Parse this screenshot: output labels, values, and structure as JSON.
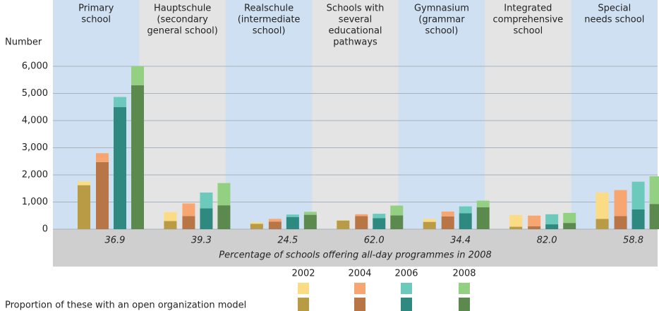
{
  "chart_data": {
    "type": "stacked-bar",
    "y_label": "Number",
    "categories": [
      [
        "Primary",
        "school"
      ],
      [
        "Hauptschule",
        "(secondary",
        "general school)"
      ],
      [
        "Realschule",
        "(intermediate",
        "school)"
      ],
      [
        "Schools with",
        "several",
        "educational",
        "pathways"
      ],
      [
        "Gymnasium",
        "(grammar",
        "school)"
      ],
      [
        "Integrated",
        "comprehensive",
        "school"
      ],
      [
        "Special",
        "needs school"
      ]
    ],
    "ylim": [
      0,
      6000
    ],
    "yticks": [
      0,
      {
        "value": 1000,
        "label": "1,000"
      },
      {
        "value": 2000,
        "label": "2,000"
      },
      {
        "value": 3000,
        "label": "3,000"
      },
      {
        "value": 4000,
        "label": "4,000"
      },
      {
        "value": 5000,
        "label": "5,000"
      },
      {
        "value": 6000,
        "label": "6,000"
      }
    ],
    "grid": true,
    "series": [
      {
        "name": "2002",
        "color": "#fbdc84",
        "open_color": "#b99b45",
        "open_values": [
          1620,
          300,
          200,
          320,
          270,
          90,
          380
        ],
        "other_values": [
          140,
          330,
          50,
          10,
          110,
          430,
          970
        ]
      },
      {
        "name": "2004",
        "color": "#f7a672",
        "open_color": "#b87545",
        "open_values": [
          2470,
          480,
          280,
          480,
          470,
          110,
          480
        ],
        "other_values": [
          330,
          470,
          100,
          70,
          180,
          390,
          960
        ]
      },
      {
        "name": "2006",
        "color": "#6ccabd",
        "open_color": "#2e8a80",
        "open_values": [
          4500,
          770,
          450,
          410,
          590,
          180,
          730
        ],
        "other_values": [
          370,
          580,
          90,
          160,
          250,
          370,
          1020
        ]
      },
      {
        "name": "2008",
        "color": "#93d082",
        "open_color": "#5c8a4e",
        "open_values": [
          5300,
          880,
          530,
          510,
          810,
          230,
          930
        ],
        "other_values": [
          700,
          820,
          110,
          360,
          240,
          370,
          1020
        ]
      }
    ],
    "percentages": {
      "values": [
        36.9,
        39.3,
        24.5,
        62,
        34.4,
        82,
        58.8
      ],
      "value_labels": [
        "36.9",
        "39.3",
        "24.5",
        "62.0",
        "34.4",
        "82.0",
        "58.8"
      ]
    },
    "percent_caption": "Percentage of schools offering all-day programmes in 2008",
    "open_model_label": "Proportion of these with an open organization model"
  }
}
